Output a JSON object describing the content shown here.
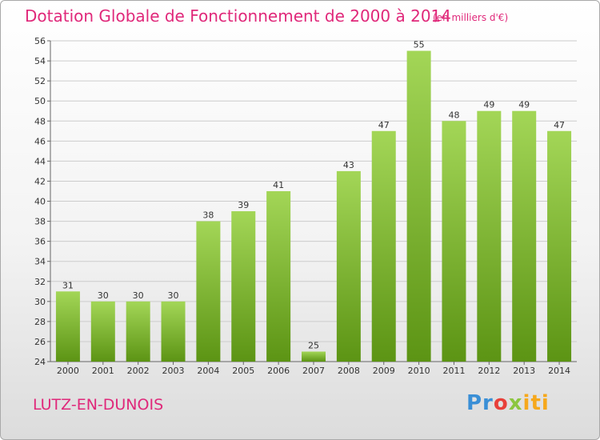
{
  "title": "Dotation Globale de Fonctionnement de 2000 à 2014",
  "subtitle": "(en milliers d'€)",
  "commune": "LUTZ-EN-DUNOIS",
  "logo": {
    "p1": "Pr",
    "p2": "o",
    "p3": "x",
    "p4": "iti"
  },
  "colors": {
    "bar_top": "#a3d657",
    "bar_bottom": "#5c9414",
    "title": "#e0287a",
    "grid": "#cccccc"
  },
  "chart_data": {
    "type": "bar",
    "title": "Dotation Globale de Fonctionnement de 2000 à 2014",
    "subtitle": "(en milliers d'€)",
    "categories": [
      "2000",
      "2001",
      "2002",
      "2003",
      "2004",
      "2005",
      "2006",
      "2007",
      "2008",
      "2009",
      "2010",
      "2011",
      "2012",
      "2013",
      "2014"
    ],
    "values": [
      31,
      30,
      30,
      30,
      38,
      39,
      41,
      25,
      43,
      47,
      55,
      48,
      49,
      49,
      47
    ],
    "ylim": [
      24,
      56
    ],
    "yticks": [
      24,
      26,
      28,
      30,
      32,
      34,
      36,
      38,
      40,
      42,
      44,
      46,
      48,
      50,
      52,
      54,
      56
    ],
    "grid": true,
    "xlabel": "",
    "ylabel": ""
  }
}
